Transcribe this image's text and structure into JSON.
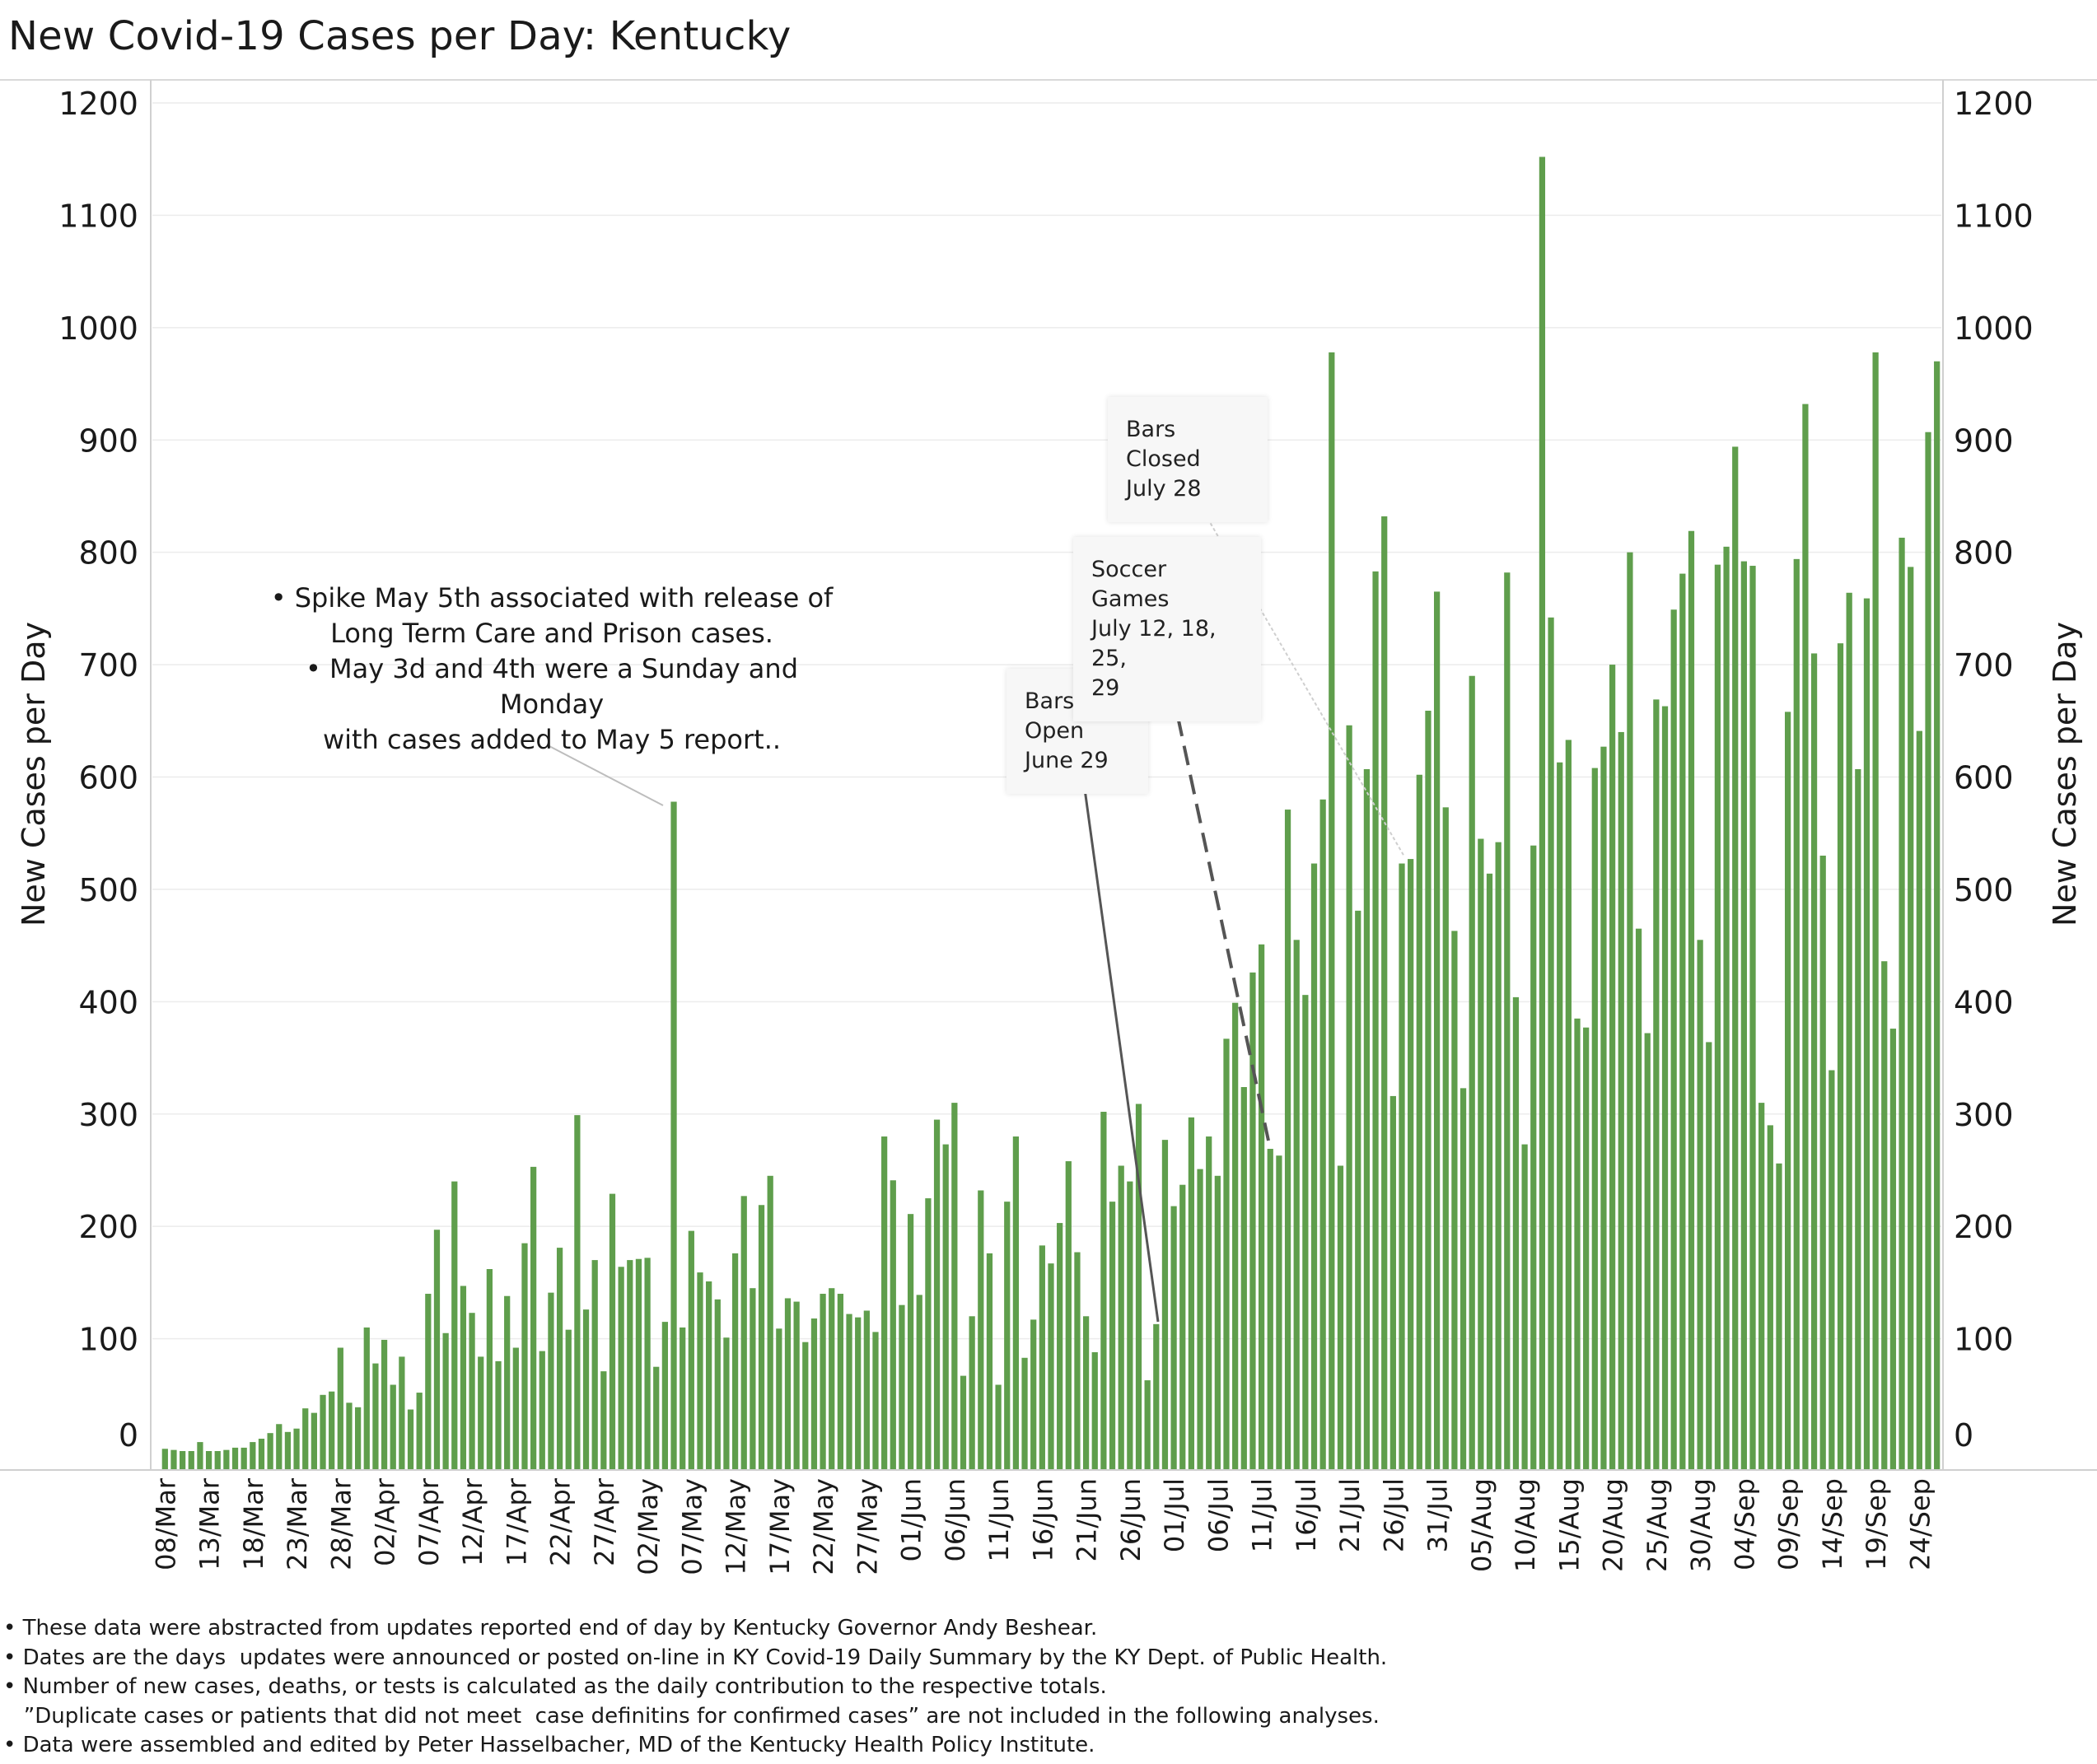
{
  "title": "New Covid-19 Cases per Day: Kentucky",
  "chart_data": {
    "type": "bar",
    "ylabel_left": "New Cases per Day",
    "ylabel_right": "New Cases per Day",
    "ylim": [
      0,
      1200
    ],
    "yticks": [
      0,
      100,
      200,
      300,
      400,
      500,
      600,
      700,
      800,
      900,
      1000,
      1100,
      1200
    ],
    "grid": true,
    "bar_color": "#5f9e4c",
    "x_tick_labels": [
      "08/Mar",
      "13/Mar",
      "18/Mar",
      "23/Mar",
      "28/Mar",
      "02/Apr",
      "07/Apr",
      "12/Apr",
      "17/Apr",
      "22/Apr",
      "27/Apr",
      "02/May",
      "07/May",
      "12/May",
      "17/May",
      "22/May",
      "27/May",
      "01/Jun",
      "06/Jun",
      "11/Jun",
      "16/Jun",
      "21/Jun",
      "26/Jun",
      "01/Jul",
      "06/Jul",
      "11/Jul",
      "16/Jul",
      "21/Jul",
      "26/Jul",
      "31/Jul",
      "05/Aug",
      "10/Aug",
      "15/Aug",
      "20/Aug",
      "25/Aug",
      "30/Aug",
      "04/Sep",
      "09/Sep",
      "14/Sep",
      "19/Sep",
      "24/Sep"
    ],
    "start_label": "08/Mar",
    "values": [
      2,
      1,
      0,
      0,
      8,
      0,
      0,
      1,
      3,
      3,
      8,
      11,
      16,
      24,
      17,
      20,
      38,
      34,
      50,
      53,
      92,
      43,
      39,
      110,
      78,
      99,
      59,
      84,
      37,
      52,
      140,
      197,
      105,
      240,
      147,
      123,
      84,
      162,
      80,
      138,
      92,
      185,
      253,
      89,
      141,
      181,
      108,
      299,
      126,
      170,
      71,
      229,
      164,
      170,
      171,
      172,
      75,
      115,
      578,
      110,
      196,
      159,
      151,
      135,
      101,
      176,
      227,
      145,
      219,
      245,
      109,
      136,
      133,
      97,
      118,
      140,
      145,
      140,
      122,
      119,
      125,
      106,
      280,
      241,
      130,
      211,
      139,
      225,
      295,
      273,
      310,
      67,
      120,
      232,
      176,
      59,
      222,
      280,
      83,
      117,
      183,
      167,
      203,
      258,
      177,
      120,
      88,
      302,
      222,
      254,
      240,
      309,
      63,
      113,
      277,
      218,
      237,
      297,
      251,
      280,
      245,
      367,
      399,
      324,
      426,
      451,
      269,
      263,
      571,
      455,
      406,
      523,
      580,
      978,
      254,
      646,
      481,
      607,
      783,
      832,
      316,
      523,
      527,
      602,
      659,
      765,
      573,
      463,
      323,
      690,
      545,
      514,
      542,
      782,
      404,
      273,
      539,
      1152,
      742,
      613,
      633,
      385,
      377,
      608,
      627,
      700,
      640,
      800,
      465,
      372,
      669,
      663,
      749,
      781,
      819,
      455,
      364,
      789,
      805,
      894,
      792,
      788,
      310,
      290,
      256,
      658,
      794,
      932,
      710,
      530,
      339,
      719,
      764,
      607,
      759,
      978,
      436,
      376,
      813,
      787,
      641,
      907,
      970
    ]
  },
  "annotations": {
    "spike": "• Spike May 5th associated with release of\nLong Term Care and Prison cases.\n• May 3d and 4th were a Sunday and Monday\nwith cases added to May 5 report..",
    "bars_open": "Bars Open\nJune 29",
    "soccer": "Soccer Games\nJuly 12, 18, 25,\n29",
    "bars_closed": "Bars Closed\nJuly 28"
  },
  "notes": [
    "• These data were abstracted from updates reported end of day by Kentucky Governor Andy Beshear.",
    "• Dates are the days  updates were announced or posted on-line in KY Covid-19 Daily Summary by the KY Dept. of Public Health.",
    "• Number of new cases, deaths, or tests is calculated as the daily contribution to the respective totals.",
    "   ”Duplicate cases or patients that did not meet  case definitins for confirmed cases” are not included in the following analyses.",
    "• Data were assembled and edited by Peter Hasselbacher, MD of the Kentucky Health Policy Institute."
  ]
}
